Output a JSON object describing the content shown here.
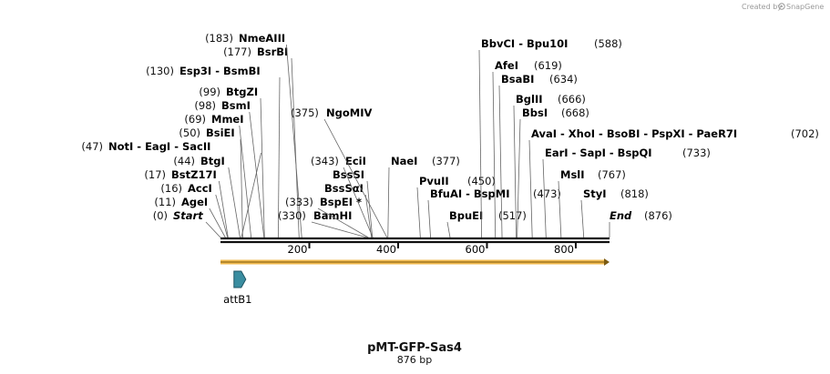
{
  "credit": {
    "text": "Created by",
    "brand": "SnapGene"
  },
  "sequence": {
    "name": "pMT-GFP-Sas4",
    "length_label": "876 bp",
    "length": 876
  },
  "ruler": {
    "ticks": [
      200,
      400,
      600,
      800
    ]
  },
  "features": [
    {
      "name": "attB1",
      "start": 16,
      "end": 34,
      "color": "#3a8da0"
    },
    {
      "name": "",
      "start": 0,
      "end": 876,
      "color": "#f0b84c"
    }
  ],
  "sites": [
    {
      "name": "Start",
      "pos": 0,
      "poslabel": "(0)",
      "italic": true
    },
    {
      "name": "AgeI",
      "pos": 11,
      "poslabel": "(11)"
    },
    {
      "name": "AccI",
      "pos": 16,
      "poslabel": "(16)"
    },
    {
      "name": "BstZ17I",
      "pos": 17,
      "poslabel": "(17)"
    },
    {
      "name": "BtgI",
      "pos": 44,
      "poslabel": "(44)"
    },
    {
      "name": "NotI  -  EagI  -  SacII",
      "pos": 47,
      "poslabel": "(47)"
    },
    {
      "name": "BsiEI",
      "pos": 50,
      "poslabel": "(50)"
    },
    {
      "name": "MmeI",
      "pos": 69,
      "poslabel": "(69)"
    },
    {
      "name": "BsmI",
      "pos": 98,
      "poslabel": "(98)"
    },
    {
      "name": "BtgZI",
      "pos": 99,
      "poslabel": "(99)"
    },
    {
      "name": "Esp3I  -  BsmBI",
      "pos": 130,
      "poslabel": "(130)"
    },
    {
      "name": "BsrBI",
      "pos": 177,
      "poslabel": "(177)"
    },
    {
      "name": "NmeAIII",
      "pos": 183,
      "poslabel": "(183)"
    },
    {
      "name": "BamHI",
      "pos": 330,
      "poslabel": "(330)",
      "side": "right"
    },
    {
      "name": "BspEI *",
      "pos": 333,
      "poslabel": "(333)",
      "side": "right"
    },
    {
      "name": "BssSαI",
      "pos": 340,
      "poslabel": "",
      "side": "right"
    },
    {
      "name": "BssSI",
      "pos": 342,
      "poslabel": "",
      "side": "right"
    },
    {
      "name": "EciI",
      "pos": 343,
      "poslabel": "(343)",
      "side": "right"
    },
    {
      "name": "NgoMIV",
      "pos": 375,
      "poslabel": "(375)",
      "side": "right"
    },
    {
      "name": "NaeI",
      "pos": 377,
      "poslabel": "(377)"
    },
    {
      "name": "PvuII",
      "pos": 450,
      "poslabel": "(450)"
    },
    {
      "name": "BfuAI  -  BspMI",
      "pos": 473,
      "poslabel": "(473)"
    },
    {
      "name": "BpuEI",
      "pos": 517,
      "poslabel": "(517)"
    },
    {
      "name": "BbvCI  -  Bpu10I",
      "pos": 588,
      "poslabel": "(588)"
    },
    {
      "name": "AfeI",
      "pos": 619,
      "poslabel": "(619)"
    },
    {
      "name": "BsaBI",
      "pos": 634,
      "poslabel": "(634)"
    },
    {
      "name": "BglII",
      "pos": 666,
      "poslabel": "(666)"
    },
    {
      "name": "BbsI",
      "pos": 668,
      "poslabel": "(668)"
    },
    {
      "name": "AvaI  -  XhoI  -  BsoBI  -  PspXI  -  PaeR7I",
      "pos": 702,
      "poslabel": "(702)"
    },
    {
      "name": "EarI  -  SapI  -  BspQI",
      "pos": 733,
      "poslabel": "(733)"
    },
    {
      "name": "MslI",
      "pos": 767,
      "poslabel": "(767)"
    },
    {
      "name": "StyI",
      "pos": 818,
      "poslabel": "(818)"
    },
    {
      "name": "End",
      "pos": 876,
      "poslabel": "(876)",
      "italic": true
    }
  ]
}
